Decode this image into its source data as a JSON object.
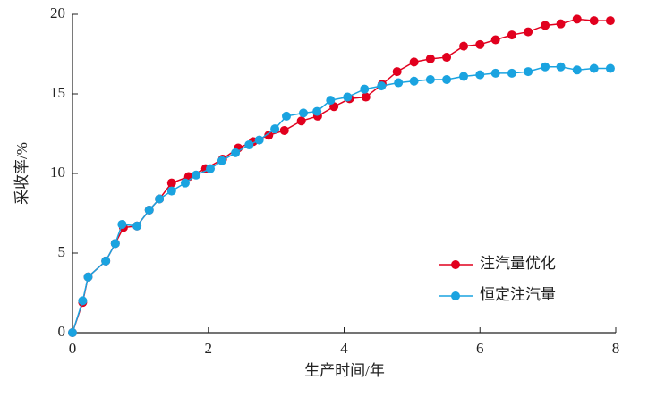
{
  "chart_data": {
    "type": "line",
    "x_label": "生产时间/年",
    "y_label": "采收率/%",
    "xlim": [
      0,
      8
    ],
    "xticks": [
      0,
      2,
      4,
      6,
      8
    ],
    "ylim": [
      0,
      20
    ],
    "yticks": [
      0,
      5,
      10,
      15,
      20
    ],
    "legend": "lower right",
    "series": [
      {
        "name": "注汽量优化",
        "color": "#e1001e",
        "x": [
          0,
          0.15,
          0.23,
          0.49,
          0.63,
          0.75,
          0.95,
          1.13,
          1.28,
          1.46,
          1.71,
          1.96,
          2.21,
          2.44,
          2.66,
          2.89,
          3.12,
          3.37,
          3.61,
          3.85,
          4.08,
          4.32,
          4.56,
          4.78,
          5.03,
          5.27,
          5.51,
          5.76,
          6.0,
          6.23,
          6.47,
          6.71,
          6.96,
          7.19,
          7.43,
          7.68,
          7.92
        ],
        "values": [
          0,
          1.9,
          3.5,
          4.5,
          5.6,
          6.6,
          6.7,
          7.7,
          8.4,
          9.4,
          9.8,
          10.3,
          10.9,
          11.6,
          12.0,
          12.4,
          12.7,
          13.3,
          13.6,
          14.2,
          14.7,
          14.8,
          15.6,
          16.4,
          17.0,
          17.2,
          17.3,
          18.0,
          18.1,
          18.4,
          18.7,
          18.9,
          19.3,
          19.4,
          19.7,
          19.6,
          19.6
        ]
      },
      {
        "name": "恒定注汽量",
        "color": "#1aa3e0",
        "x": [
          0,
          0.15,
          0.23,
          0.49,
          0.63,
          0.73,
          0.95,
          1.13,
          1.28,
          1.46,
          1.66,
          1.82,
          2.03,
          2.2,
          2.4,
          2.6,
          2.75,
          2.98,
          3.15,
          3.4,
          3.6,
          3.8,
          4.05,
          4.3,
          4.55,
          4.8,
          5.03,
          5.27,
          5.51,
          5.76,
          6.0,
          6.23,
          6.47,
          6.71,
          6.96,
          7.19,
          7.43,
          7.68,
          7.92
        ],
        "values": [
          0,
          2.0,
          3.5,
          4.5,
          5.6,
          6.8,
          6.7,
          7.7,
          8.4,
          8.9,
          9.4,
          9.9,
          10.3,
          10.8,
          11.3,
          11.8,
          12.1,
          12.8,
          13.6,
          13.8,
          13.9,
          14.6,
          14.8,
          15.3,
          15.5,
          15.7,
          15.8,
          15.9,
          15.9,
          16.1,
          16.2,
          16.3,
          16.3,
          16.4,
          16.7,
          16.7,
          16.5,
          16.6,
          16.6
        ]
      }
    ]
  }
}
